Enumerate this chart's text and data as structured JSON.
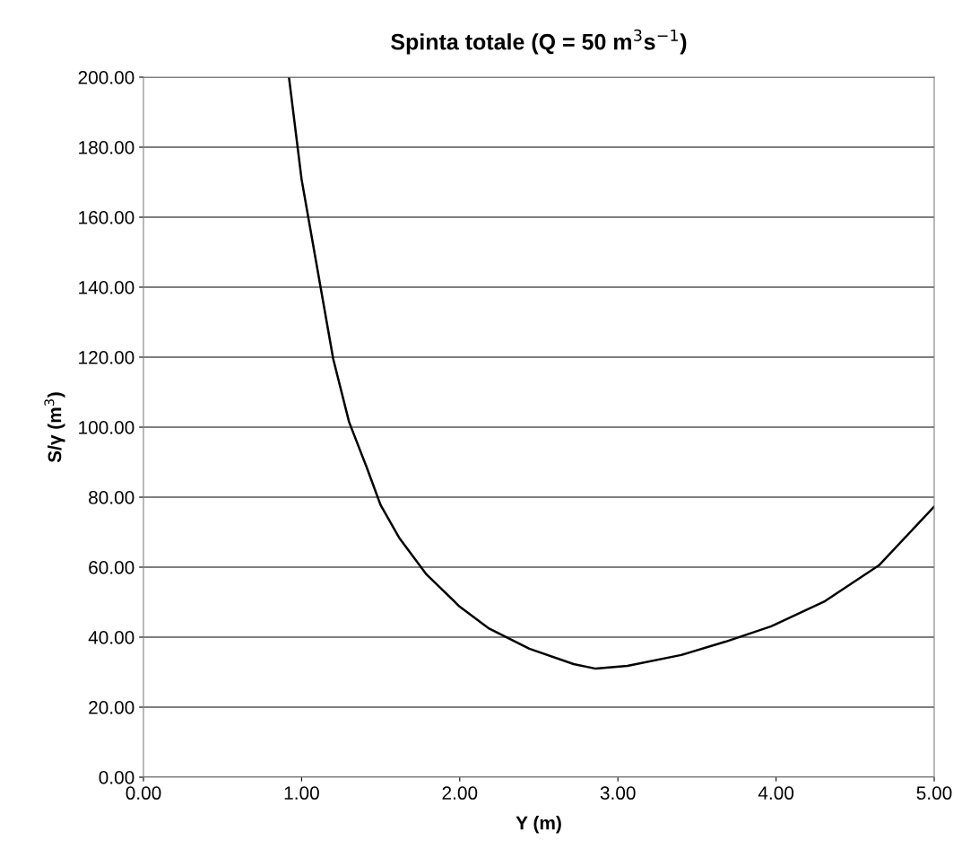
{
  "chart_data": {
    "type": "line",
    "title": "Spinta totale (Q = 50 m$^{3}$s$^{−1}$)",
    "xlabel": "Y (m)",
    "ylabel": "S/γ (m$^{3}$)",
    "series": [
      {
        "color": "#000000",
        "x": [
          0.92,
          1.0,
          1.09,
          1.2,
          1.3,
          1.41,
          1.5,
          1.62,
          1.79,
          2.0,
          2.18,
          2.44,
          2.72,
          2.86,
          3.06,
          3.4,
          3.68,
          3.97,
          4.31,
          4.65,
          5.0
        ],
        "values": [
          200,
          170.8,
          147.7,
          119.5,
          101.5,
          88.7,
          77.7,
          68.2,
          57.9,
          48.7,
          42.6,
          36.7,
          32.3,
          31.0,
          31.8,
          34.9,
          38.7,
          43.1,
          50.3,
          60.5,
          77.3
        ]
      }
    ],
    "xlim": [
      0,
      5
    ],
    "ylim": [
      0,
      200
    ],
    "xticks": [
      {
        "value": 0,
        "label": "0.00"
      },
      {
        "value": 1,
        "label": "1.00"
      },
      {
        "value": 2,
        "label": "2.00"
      },
      {
        "value": 3,
        "label": "3.00"
      },
      {
        "value": 4,
        "label": "4.00"
      },
      {
        "value": 5,
        "label": "5.00"
      }
    ],
    "yticks": [
      {
        "value": 0,
        "label": "0.00"
      },
      {
        "value": 20,
        "label": "20.00"
      },
      {
        "value": 40,
        "label": "40.00"
      },
      {
        "value": 60,
        "label": "60.00"
      },
      {
        "value": 80,
        "label": "80.00"
      },
      {
        "value": 100,
        "label": "100.00"
      },
      {
        "value": 120,
        "label": "120.00"
      },
      {
        "value": 140,
        "label": "140.00"
      },
      {
        "value": 160,
        "label": "160.00"
      },
      {
        "value": 180,
        "label": "180.00"
      },
      {
        "value": 200,
        "label": "200.00"
      }
    ],
    "grid": "y",
    "marker": "none",
    "line_style": "solid"
  }
}
